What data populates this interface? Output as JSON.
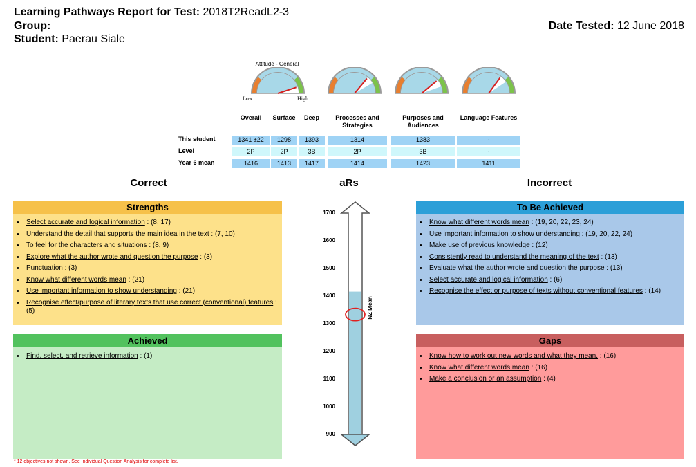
{
  "header": {
    "title_label": "Learning Pathways Report for Test:",
    "test_name": "2018T2ReadL2-3",
    "group_label": "Group:",
    "group_value": "",
    "student_label": "Student:",
    "student_name": "Paerau Siale",
    "date_label": "Date Tested:",
    "date_value": "12 June 2018"
  },
  "gauges": {
    "title": "Attitude - General",
    "low": "Low",
    "high": "High",
    "needle_levels": [
      0.9,
      0.72,
      0.78,
      0.7
    ]
  },
  "score_table": {
    "columns": [
      "Overall",
      "Surface",
      "Deep",
      "Processes and Strategies",
      "Purposes and Audiences",
      "Language Features"
    ],
    "rows": [
      {
        "label": "This student",
        "values": [
          "1341 ±22",
          "1298",
          "1393",
          "1314",
          "1383",
          "-"
        ]
      },
      {
        "label": "Level",
        "values": [
          "2P",
          "2P",
          "3B",
          "2P",
          "3B",
          "-"
        ]
      },
      {
        "label": "Year 6 mean",
        "values": [
          "1416",
          "1413",
          "1417",
          "1414",
          "1423",
          "1411"
        ]
      }
    ]
  },
  "sections": {
    "correct": "Correct",
    "ars": "aRs",
    "incorrect": "Incorrect"
  },
  "strengths": {
    "title": "Strengths",
    "items": [
      {
        "text": "Select accurate and logical information",
        "refs": " : (8, 17)"
      },
      {
        "text": "Understand the detail that supports the main idea in the text",
        "refs": " : (7, 10)"
      },
      {
        "text": "To feel for the characters and situations",
        "refs": " : (8, 9)"
      },
      {
        "text": "Explore what the author wrote and question the purpose",
        "refs": " : (3)"
      },
      {
        "text": "Punctuation",
        "refs": " : (3)"
      },
      {
        "text": "Know what different words mean",
        "refs": " : (21)"
      },
      {
        "text": "Use important information to show understanding",
        "refs": " : (21)"
      },
      {
        "text": "Recognise effect/purpose of literary texts that use correct (conventional) features",
        "refs": " : (5)"
      }
    ]
  },
  "achieved": {
    "title": "Achieved",
    "items": [
      {
        "text": "Find, select, and retrieve information",
        "refs": " : (1)"
      }
    ]
  },
  "to_be_achieved": {
    "title": "To Be Achieved",
    "items": [
      {
        "text": "Know what different words mean",
        "refs": " : (19, 20, 22, 23, 24)"
      },
      {
        "text": "Use important information to show understanding",
        "refs": " : (19, 20, 22, 24)"
      },
      {
        "text": "Make use of previous knowledge",
        "refs": " : (12)"
      },
      {
        "text": "Consistently read to understand the meaning of the text",
        "refs": " : (13)"
      },
      {
        "text": "Evaluate what the author wrote and question the purpose",
        "refs": " : (13)"
      },
      {
        "text": "Select accurate and logical information",
        "refs": " : (6)"
      },
      {
        "text": "Recognise the effect or purpose of texts without conventional features",
        "refs": " : (14)"
      }
    ]
  },
  "gaps": {
    "title": "Gaps",
    "items": [
      {
        "text": "Know how to work out new words and what they mean.",
        "refs": " : (16)"
      },
      {
        "text": "Know what different words mean",
        "refs": " : (16)"
      },
      {
        "text": "Make a conclusion or an assumption",
        "refs": " : (4)"
      }
    ]
  },
  "scale": {
    "ticks": [
      "1700",
      "1600",
      "1500",
      "1400",
      "1300",
      "1200",
      "1100",
      "1000",
      "900"
    ],
    "min": 900,
    "max": 1700,
    "mean_label": "NZ Mean",
    "mean_value": 1416,
    "student_value": 1341
  },
  "footnote": "* 12 objectives not shown. See Individual Question Analysis for complete list.",
  "colors": {
    "strengths_header": "#f6c14a",
    "strengths_body": "#fde18a",
    "achieved_header": "#52c25e",
    "achieved_body": "#c5ecc5",
    "tba_header": "#2c9fd8",
    "tba_body": "#a9c8e9",
    "gaps_header": "#c85f5f",
    "gaps_body": "#ff9b9b"
  }
}
